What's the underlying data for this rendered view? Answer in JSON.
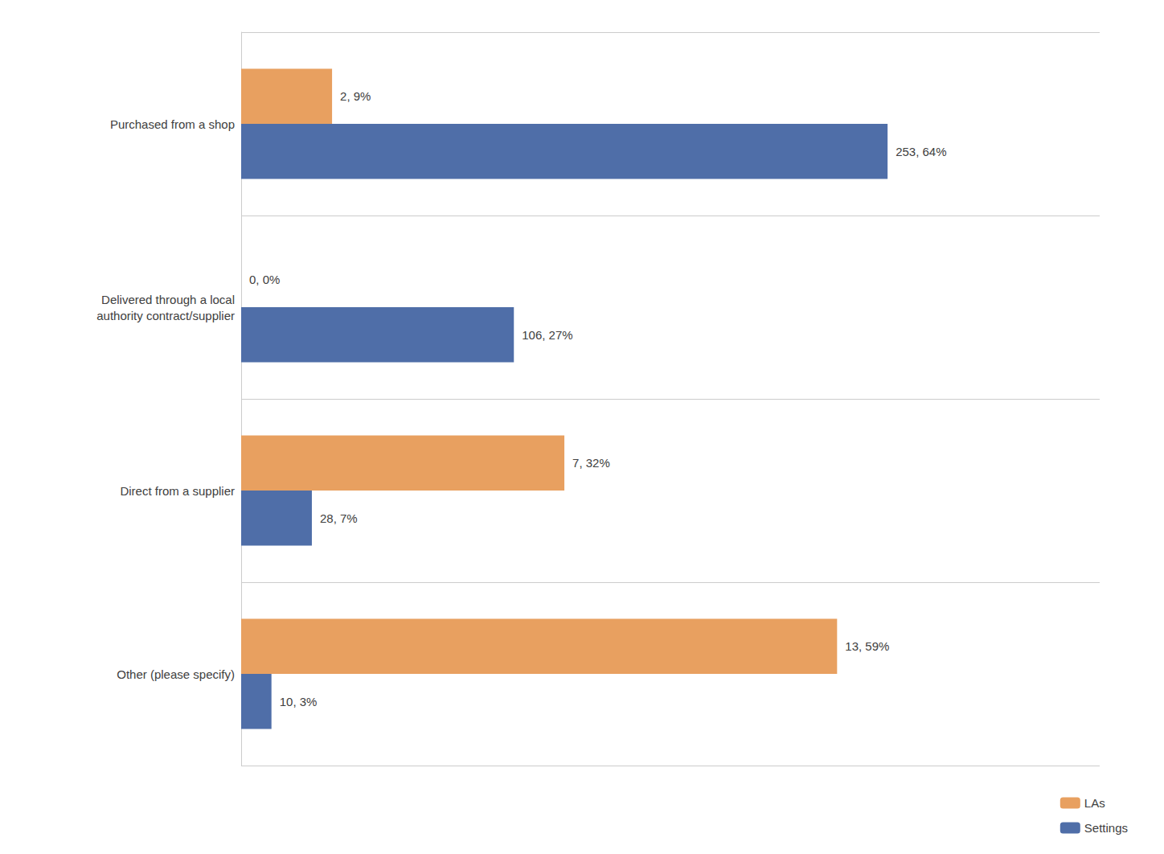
{
  "chart_data": {
    "type": "bar",
    "orientation": "horizontal",
    "categories": [
      "Purchased from a shop",
      "Delivered through a local\nauthority contract/supplier",
      "Direct from a supplier",
      "Other (please specify)"
    ],
    "series": [
      {
        "name": "LAs",
        "color": "#E8A060",
        "values": [
          9,
          0,
          32,
          59
        ],
        "value_labels": [
          "2, 9%",
          "0, 0%",
          "7, 32%",
          "13, 59%"
        ]
      },
      {
        "name": "Settings",
        "color": "#4F6EA8",
        "values": [
          64,
          27,
          7,
          3
        ],
        "value_labels": [
          "253, 64%",
          "106, 27%",
          "28, 7%",
          "10, 3%"
        ]
      }
    ],
    "xlim": [
      0,
      85
    ],
    "tick_labels": "y",
    "data_labels": true,
    "grid": true,
    "legend": "lower right"
  }
}
